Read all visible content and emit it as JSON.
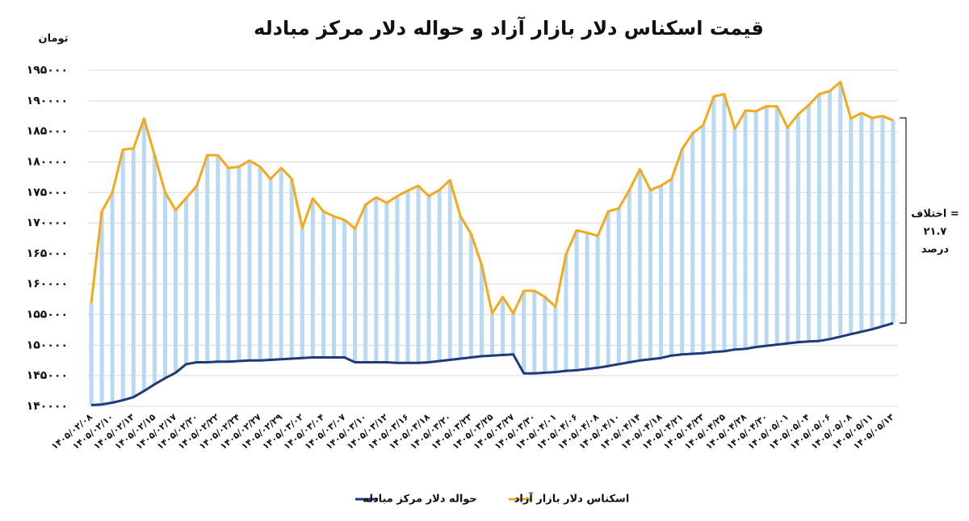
{
  "chart_data": {
    "type": "line",
    "title": "قیمت اسکناس دلار بازار آزاد و حواله دلار مرکز مبادله",
    "y_unit_label": "تومان",
    "annotation_lines": [
      "اختلاف =",
      "۲۱.۷",
      "درصد"
    ],
    "categories": [
      "۱۴۰۵/۰۲/۰۸",
      null,
      "۱۴۰۵/۰۲/۱۰",
      null,
      "۱۴۰۵/۰۲/۱۳",
      null,
      "۱۴۰۵/۰۲/۱۵",
      null,
      "۱۴۰۵/۰۲/۱۷",
      null,
      "۱۴۰۵/۰۲/۲۰",
      null,
      "۱۴۰۵/۰۲/۲۲",
      null,
      "۱۴۰۵/۰۲/۲۴",
      null,
      "۱۴۰۵/۰۲/۲۷",
      null,
      "۱۴۰۵/۰۲/۲۹",
      null,
      "۱۴۰۵/۰۳/۰۲",
      null,
      "۱۴۰۵/۰۳/۰۴",
      null,
      "۱۴۰۵/۰۳/۰۷",
      null,
      "۱۴۰۵/۰۳/۱۰",
      null,
      "۱۴۰۵/۰۳/۱۲",
      null,
      "۱۴۰۵/۰۳/۱۶",
      null,
      "۱۴۰۵/۰۳/۱۸",
      null,
      "۱۴۰۵/۰۳/۲۰",
      null,
      "۱۴۰۵/۰۳/۲۳",
      null,
      "۱۴۰۵/۰۳/۲۵",
      null,
      "۱۴۰۵/۰۳/۲۷",
      null,
      "۱۴۰۵/۰۳/۳۰",
      null,
      "۱۴۰۵/۰۴/۰۱",
      null,
      "۱۴۰۵/۰۴/۰۶",
      null,
      "۱۴۰۵/۰۴/۰۸",
      null,
      "۱۴۰۵/۰۴/۱۰",
      null,
      "۱۴۰۵/۰۴/۱۴",
      null,
      "۱۴۰۵/۰۴/۱۸",
      null,
      "۱۴۰۵/۰۴/۲۱",
      null,
      "۱۴۰۵/۰۴/۲۳",
      null,
      "۱۴۰۵/۰۴/۲۵",
      null,
      "۱۴۰۵/۰۴/۲۸",
      null,
      "۱۴۰۵/۰۴/۳۰",
      null,
      "۱۴۰۵/۰۵/۰۱",
      null,
      "۱۴۰۵/۰۵/۰۴",
      null,
      "۱۴۰۵/۰۵/۰۶",
      null,
      "۱۴۰۵/۰۵/۰۸",
      null,
      "۱۴۰۵/۰۵/۱۱",
      null,
      "۱۴۰۵/۰۵/۱۳"
    ],
    "series": [
      {
        "name": "حواله دلار مرکز مبادله",
        "color": "#1f3a78",
        "values": [
          140200,
          140300,
          140600,
          141000,
          141500,
          142500,
          143600,
          144600,
          145500,
          146900,
          147200,
          147200,
          147300,
          147300,
          147400,
          147500,
          147500,
          147600,
          147700,
          147800,
          147900,
          148000,
          148000,
          148000,
          148000,
          147200,
          147200,
          147200,
          147200,
          147100,
          147100,
          147100,
          147200,
          147400,
          147600,
          147800,
          148000,
          148200,
          148300,
          148400,
          148500,
          145400,
          145400,
          145500,
          145600,
          145800,
          145900,
          146100,
          146300,
          146600,
          146900,
          147200,
          147500,
          147700,
          147900,
          148300,
          148500,
          148600,
          148700,
          148900,
          149000,
          149300,
          149400,
          149700,
          149900,
          150100,
          150300,
          150500,
          150600,
          150700,
          151000,
          151400,
          151800,
          152200,
          152600,
          153100,
          153600
        ]
      },
      {
        "name": "اسکناس دلار بازار آزاد",
        "color": "#f5a91a",
        "values": [
          156900,
          171900,
          175000,
          182000,
          182200,
          187100,
          181100,
          175000,
          172100,
          174100,
          176100,
          181100,
          181100,
          179000,
          179200,
          180200,
          179200,
          177200,
          179000,
          177200,
          169200,
          174000,
          171900,
          171100,
          170500,
          169100,
          173000,
          174200,
          173300,
          174400,
          175300,
          176100,
          174400,
          175400,
          177000,
          171100,
          168200,
          163200,
          155200,
          157900,
          155200,
          158900,
          158900,
          157900,
          156300,
          164900,
          168800,
          168400,
          167900,
          171900,
          172400,
          175400,
          178800,
          175400,
          176100,
          177200,
          182100,
          184700,
          186000,
          190700,
          191100,
          185400,
          188400,
          188300,
          189100,
          189100,
          185600,
          187800,
          189300,
          191100,
          191600,
          193100,
          187100,
          188000,
          187200,
          187500,
          186800
        ]
      }
    ],
    "bar_color": "#b9d8f3",
    "ylim": [
      140000,
      195000
    ],
    "yticks": [
      {
        "value": 140000,
        "label": "۱۴۰۰۰۰"
      },
      {
        "value": 145000,
        "label": "۱۴۵۰۰۰"
      },
      {
        "value": 150000,
        "label": "۱۵۰۰۰۰"
      },
      {
        "value": 155000,
        "label": "۱۵۵۰۰۰"
      },
      {
        "value": 160000,
        "label": "۱۶۰۰۰۰"
      },
      {
        "value": 165000,
        "label": "۱۶۵۰۰۰"
      },
      {
        "value": 170000,
        "label": "۱۷۰۰۰۰"
      },
      {
        "value": 175000,
        "label": "۱۷۵۰۰۰"
      },
      {
        "value": 180000,
        "label": "۱۸۰۰۰۰"
      },
      {
        "value": 185000,
        "label": "۱۸۵۰۰۰"
      },
      {
        "value": 190000,
        "label": "۱۹۰۰۰۰"
      },
      {
        "value": 195000,
        "label": "۱۹۵۰۰۰"
      }
    ],
    "grid": true,
    "legend": "bottom"
  }
}
